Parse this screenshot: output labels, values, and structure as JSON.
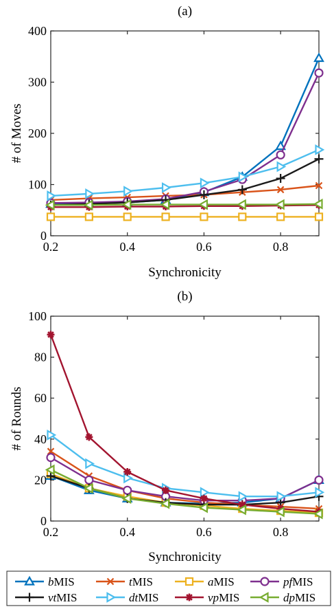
{
  "chart_data": [
    {
      "type": "line",
      "title": "(a)",
      "xlabel": "Synchronicity",
      "ylabel": "# of Moves",
      "xlim": [
        0.2,
        0.9
      ],
      "ylim": [
        0,
        400
      ],
      "xticks": [
        "0.2",
        "0.4",
        "0.6",
        "0.8"
      ],
      "yticks": [
        "0",
        "100",
        "200",
        "300",
        "400"
      ],
      "x": [
        0.2,
        0.3,
        0.4,
        0.5,
        0.6,
        0.7,
        0.8,
        0.9
      ],
      "grid": false,
      "series": [
        {
          "name": "bMIS",
          "color": "#0072BD",
          "marker": "triangle-up",
          "values": [
            62,
            63,
            65,
            70,
            85,
            115,
            175,
            347
          ]
        },
        {
          "name": "tMIS",
          "color": "#D95319",
          "marker": "x",
          "values": [
            70,
            73,
            75,
            78,
            80,
            85,
            90,
            98
          ]
        },
        {
          "name": "aMIS",
          "color": "#EDB120",
          "marker": "square",
          "values": [
            37,
            37,
            37,
            37,
            37,
            37,
            37,
            37
          ]
        },
        {
          "name": "pfMIS",
          "color": "#7E2F8E",
          "marker": "circle",
          "values": [
            64,
            65,
            67,
            72,
            86,
            110,
            158,
            318
          ]
        },
        {
          "name": "vtMIS",
          "color": "#1A1A1A",
          "marker": "plus",
          "values": [
            60,
            62,
            65,
            70,
            80,
            90,
            112,
            150
          ]
        },
        {
          "name": "dtMIS",
          "color": "#4DBEEE",
          "marker": "triangle-right",
          "values": [
            78,
            82,
            87,
            94,
            103,
            115,
            135,
            168
          ]
        },
        {
          "name": "vpMIS",
          "color": "#A2142F",
          "marker": "asterisk",
          "values": [
            56,
            56,
            57,
            57,
            58,
            58,
            59,
            60
          ]
        },
        {
          "name": "dpMIS",
          "color": "#77AC30",
          "marker": "triangle-left",
          "values": [
            60,
            60,
            61,
            61,
            61,
            61,
            61,
            62
          ]
        }
      ]
    },
    {
      "type": "line",
      "title": "(b)",
      "xlabel": "Synchronicity",
      "ylabel": "# of Rounds",
      "xlim": [
        0.2,
        0.9
      ],
      "ylim": [
        0,
        100
      ],
      "xticks": [
        "0.2",
        "0.4",
        "0.6",
        "0.8"
      ],
      "yticks": [
        "0",
        "20",
        "40",
        "60",
        "80",
        "100"
      ],
      "x": [
        0.2,
        0.3,
        0.4,
        0.5,
        0.6,
        0.7,
        0.8,
        0.9
      ],
      "grid": false,
      "series": [
        {
          "name": "bMIS",
          "color": "#0072BD",
          "marker": "triangle-up",
          "values": [
            22,
            15,
            11,
            9,
            8.5,
            9,
            11,
            20
          ]
        },
        {
          "name": "tMIS",
          "color": "#D95319",
          "marker": "x",
          "values": [
            34,
            22,
            15,
            11,
            9,
            8,
            7,
            6
          ]
        },
        {
          "name": "aMIS",
          "color": "#EDB120",
          "marker": "square",
          "values": [
            23,
            16,
            12,
            9,
            7.5,
            6,
            5,
            4
          ]
        },
        {
          "name": "pfMIS",
          "color": "#7E2F8E",
          "marker": "circle",
          "values": [
            31,
            20,
            15,
            12,
            10,
            10,
            11,
            20
          ]
        },
        {
          "name": "vtMIS",
          "color": "#1A1A1A",
          "marker": "plus",
          "values": [
            22,
            16,
            11,
            9,
            8,
            8,
            9,
            12
          ]
        },
        {
          "name": "dtMIS",
          "color": "#4DBEEE",
          "marker": "triangle-right",
          "values": [
            42,
            28,
            21,
            16,
            14,
            12,
            12,
            14
          ]
        },
        {
          "name": "vpMIS",
          "color": "#A2142F",
          "marker": "asterisk",
          "values": [
            91,
            41,
            24,
            15,
            11,
            8,
            6,
            4.5
          ]
        },
        {
          "name": "dpMIS",
          "color": "#77AC30",
          "marker": "triangle-left",
          "values": [
            25,
            16,
            11,
            8.5,
            6.5,
            5.5,
            4.5,
            3.5
          ]
        }
      ]
    }
  ],
  "legend": {
    "placement": "bottom",
    "columns": 4,
    "entries": [
      {
        "prefix": "b",
        "suffix": "MIS"
      },
      {
        "prefix": "t",
        "suffix": "MIS"
      },
      {
        "prefix": "a",
        "suffix": "MIS"
      },
      {
        "prefix": "pf",
        "suffix": "MIS"
      },
      {
        "prefix": "vt",
        "suffix": "MIS"
      },
      {
        "prefix": "dt",
        "suffix": "MIS"
      },
      {
        "prefix": "vp",
        "suffix": "MIS"
      },
      {
        "prefix": "dp",
        "suffix": "MIS"
      }
    ]
  }
}
